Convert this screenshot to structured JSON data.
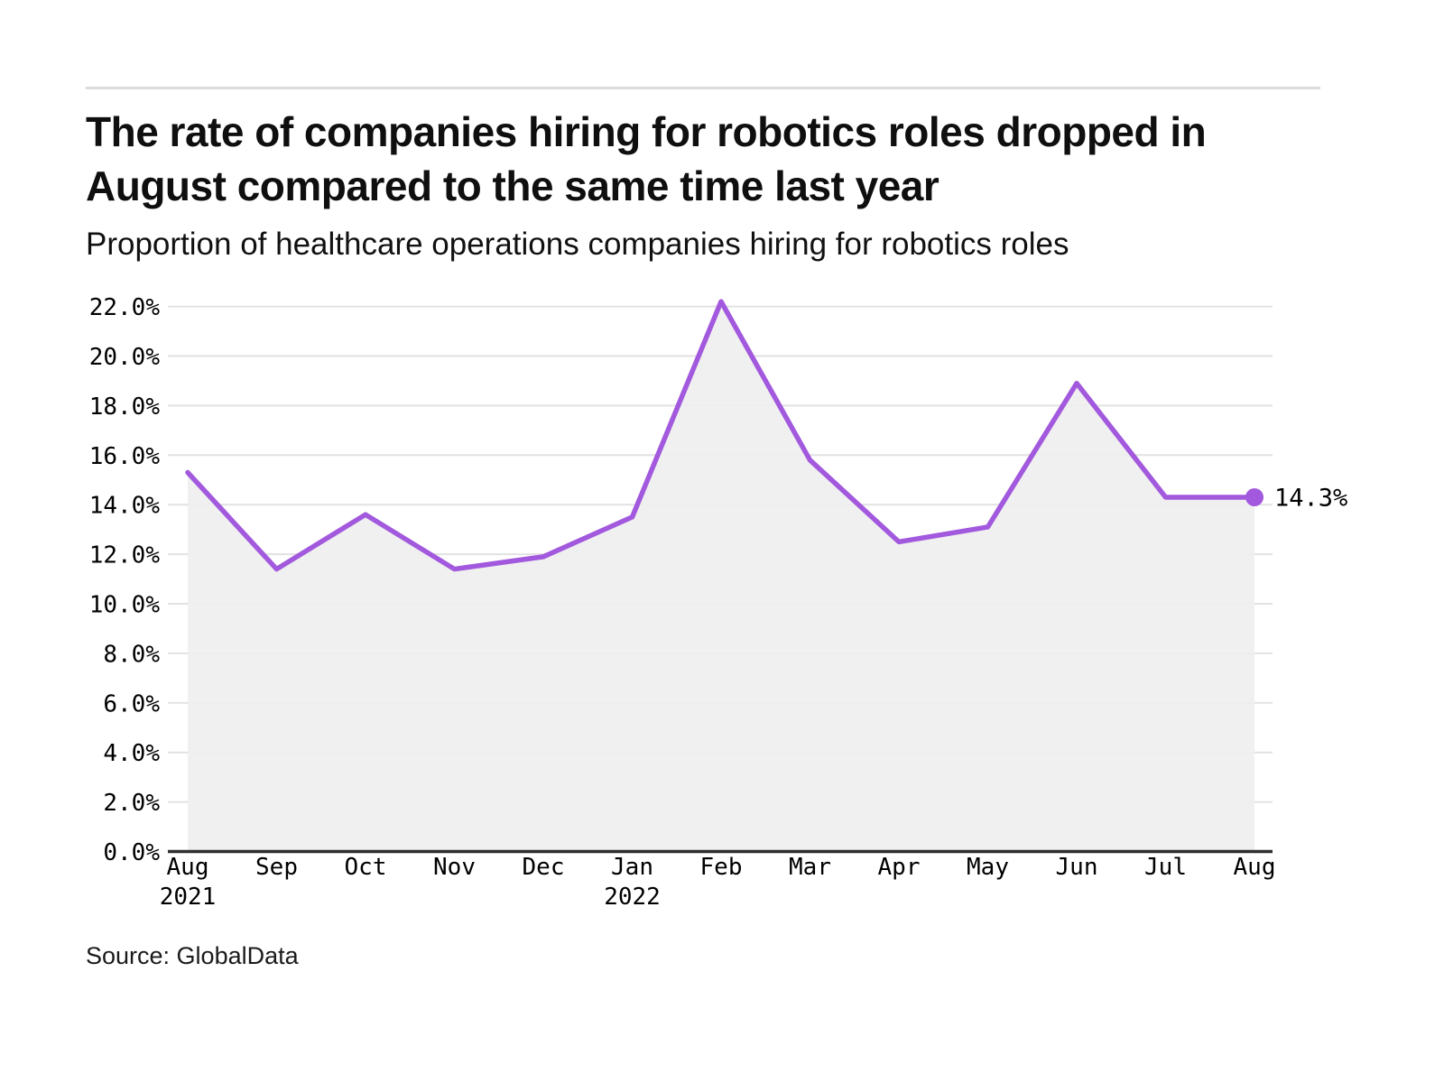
{
  "header": {
    "title": "The rate of companies hiring for robotics roles dropped in August compared to the same time last year",
    "subtitle": "Proportion of healthcare operations companies hiring for robotics roles"
  },
  "source": {
    "text": "Source: GlobalData"
  },
  "chart_data": {
    "type": "line",
    "title": "Proportion of healthcare operations companies hiring for robotics roles",
    "x_categories": [
      "Aug",
      "Sep",
      "Oct",
      "Nov",
      "Dec",
      "Jan",
      "Feb",
      "Mar",
      "Apr",
      "May",
      "Jun",
      "Jul",
      "Aug"
    ],
    "x_year_rows": [
      {
        "index": 0,
        "label": "2021"
      },
      {
        "index": 5,
        "label": "2022"
      }
    ],
    "values": [
      15.3,
      11.4,
      13.6,
      11.4,
      11.9,
      13.5,
      22.2,
      15.8,
      12.5,
      13.1,
      18.9,
      14.3,
      14.3
    ],
    "end_label": "14.3%",
    "y_ticks": [
      "22.0%",
      "20.0%",
      "18.0%",
      "16.0%",
      "14.0%",
      "12.0%",
      "10.0%",
      "8.0%",
      "6.0%",
      "4.0%",
      "2.0%",
      "0.0%"
    ],
    "ylim": [
      0,
      22
    ],
    "grid": true,
    "legend": "none",
    "area_fill": true,
    "colors": {
      "line": "#A259DD",
      "marker": "#A259DD",
      "area": "#EFEFEF",
      "grid": "#E2E2E2",
      "axis": "#2E2E2E",
      "text": "#000000"
    }
  }
}
